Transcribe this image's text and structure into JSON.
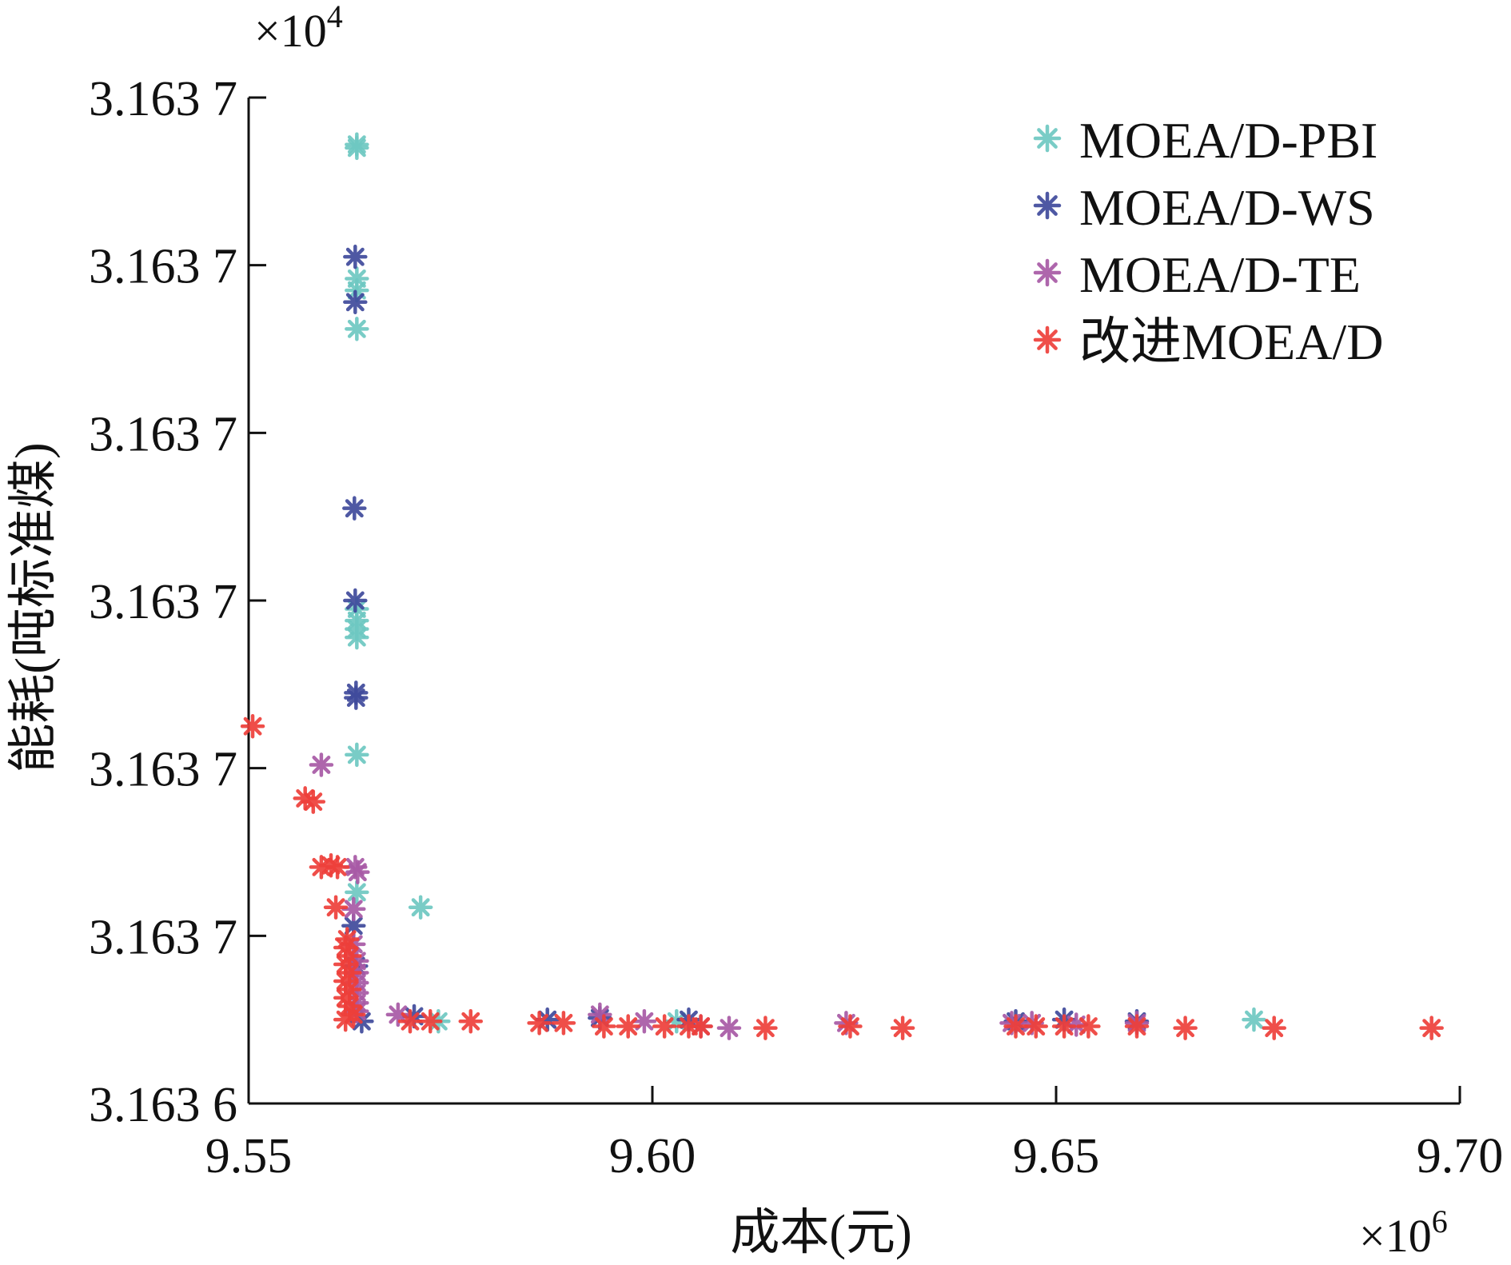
{
  "chart_data": {
    "type": "scatter",
    "title": "",
    "xlabel": "成本(元)",
    "ylabel": "能耗(吨标准煤)",
    "x_scale_label": "×10",
    "x_scale_exp": "6",
    "y_scale_label": "×10",
    "y_scale_exp": "4",
    "xlim": [
      9.55,
      9.7
    ],
    "ylim": [
      0,
      6
    ],
    "x_ticks": [
      {
        "value": 9.55,
        "label": "9.55"
      },
      {
        "value": 9.6,
        "label": "9.60"
      },
      {
        "value": 9.65,
        "label": "9.65"
      },
      {
        "value": 9.7,
        "label": "9.70"
      }
    ],
    "y_ticks": [
      {
        "value": 0,
        "label": "3.163 6"
      },
      {
        "value": 1,
        "label": "3.163 7"
      },
      {
        "value": 2,
        "label": "3.163 7"
      },
      {
        "value": 3,
        "label": "3.163 7"
      },
      {
        "value": 4,
        "label": "3.163 7"
      },
      {
        "value": 5,
        "label": "3.163 7"
      },
      {
        "value": 6,
        "label": "3.163 7"
      }
    ],
    "grid": false,
    "legend_position": "top-right",
    "marker": "asterisk",
    "series": [
      {
        "name": "MOEA/D-PBI",
        "color": "#6ec8c2",
        "points": [
          [
            9.5634,
            5.72
          ],
          [
            9.5634,
            5.7
          ],
          [
            9.5634,
            4.92
          ],
          [
            9.5634,
            4.85
          ],
          [
            9.5634,
            4.62
          ],
          [
            9.5634,
            2.95
          ],
          [
            9.5634,
            2.88
          ],
          [
            9.5634,
            2.83
          ],
          [
            9.5634,
            2.78
          ],
          [
            9.5634,
            2.08
          ],
          [
            9.5634,
            1.26
          ],
          [
            9.5713,
            1.17
          ],
          [
            9.5735,
            0.49
          ],
          [
            9.603,
            0.49
          ],
          [
            9.6745,
            0.5
          ]
        ]
      },
      {
        "name": "MOEA/D-WS",
        "color": "#3f4a9c",
        "points": [
          [
            9.5632,
            5.05
          ],
          [
            9.5632,
            4.78
          ],
          [
            9.5631,
            3.55
          ],
          [
            9.5632,
            3.0
          ],
          [
            9.5633,
            2.45
          ],
          [
            9.5633,
            2.42
          ],
          [
            9.563,
            1.06
          ],
          [
            9.5633,
            0.82
          ],
          [
            9.564,
            0.49
          ],
          [
            9.5705,
            0.52
          ],
          [
            9.587,
            0.5
          ],
          [
            9.5935,
            0.51
          ],
          [
            9.6045,
            0.5
          ],
          [
            9.645,
            0.49
          ],
          [
            9.651,
            0.5
          ],
          [
            9.66,
            0.49
          ]
        ]
      },
      {
        "name": "MOEA/D-TE",
        "color": "#a85aa6",
        "points": [
          [
            9.559,
            2.02
          ],
          [
            9.5632,
            1.41
          ],
          [
            9.5635,
            1.38
          ],
          [
            9.563,
            1.16
          ],
          [
            9.563,
            0.95
          ],
          [
            9.5634,
            0.85
          ],
          [
            9.5634,
            0.78
          ],
          [
            9.5634,
            0.72
          ],
          [
            9.5634,
            0.66
          ],
          [
            9.5634,
            0.6
          ],
          [
            9.5634,
            0.55
          ],
          [
            9.5685,
            0.53
          ],
          [
            9.5935,
            0.53
          ],
          [
            9.599,
            0.49
          ],
          [
            9.606,
            0.46
          ],
          [
            9.6095,
            0.45
          ],
          [
            9.624,
            0.48
          ],
          [
            9.6445,
            0.48
          ],
          [
            9.647,
            0.48
          ],
          [
            9.6525,
            0.47
          ],
          [
            9.66,
            0.48
          ]
        ]
      },
      {
        "name": "改进MOEA/D",
        "color": "#ee3f3a",
        "points": [
          [
            9.5505,
            2.25
          ],
          [
            9.557,
            1.82
          ],
          [
            9.558,
            1.8
          ],
          [
            9.559,
            1.41
          ],
          [
            9.5602,
            1.42
          ],
          [
            9.561,
            1.41
          ],
          [
            9.5608,
            1.17
          ],
          [
            9.5622,
            0.98
          ],
          [
            9.562,
            0.93
          ],
          [
            9.5625,
            0.88
          ],
          [
            9.562,
            0.83
          ],
          [
            9.5625,
            0.78
          ],
          [
            9.562,
            0.73
          ],
          [
            9.5625,
            0.68
          ],
          [
            9.562,
            0.63
          ],
          [
            9.5625,
            0.58
          ],
          [
            9.563,
            0.53
          ],
          [
            9.562,
            0.5
          ],
          [
            9.57,
            0.49
          ],
          [
            9.5725,
            0.49
          ],
          [
            9.5775,
            0.49
          ],
          [
            9.586,
            0.48
          ],
          [
            9.589,
            0.48
          ],
          [
            9.594,
            0.46
          ],
          [
            9.597,
            0.46
          ],
          [
            9.6015,
            0.46
          ],
          [
            9.6045,
            0.46
          ],
          [
            9.606,
            0.46
          ],
          [
            9.614,
            0.45
          ],
          [
            9.6245,
            0.46
          ],
          [
            9.631,
            0.45
          ],
          [
            9.645,
            0.46
          ],
          [
            9.6475,
            0.46
          ],
          [
            9.651,
            0.46
          ],
          [
            9.654,
            0.46
          ],
          [
            9.66,
            0.46
          ],
          [
            9.666,
            0.45
          ],
          [
            9.677,
            0.45
          ],
          [
            9.6965,
            0.45
          ]
        ]
      }
    ]
  }
}
